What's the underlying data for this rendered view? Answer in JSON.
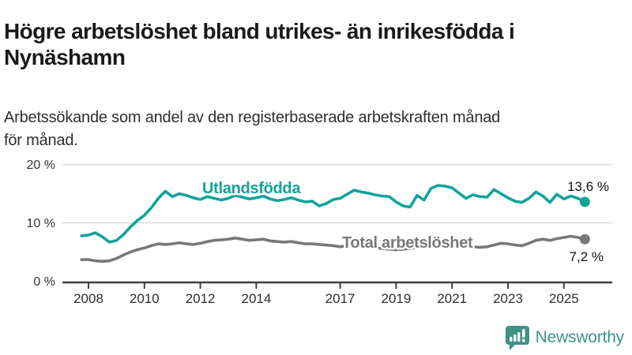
{
  "header": {
    "title": "Högre arbetslöshet bland utrikes- än inrikesfödda i Nynäshamn",
    "title_lines": [
      "Högre arbetslöshet bland utrikes- än inrikesfödda i",
      "Nynäshamn"
    ],
    "subtitle": "Arbetssökande som andel av den registerbaserade arbetskraften månad för månad.",
    "subtitle_lines": [
      "Arbetssökande som andel av den registerbaserade arbetskraften månad",
      "för månad."
    ]
  },
  "chart_data": {
    "type": "line",
    "title": "Högre arbetslöshet bland utrikes- än inrikesfödda i Nynäshamn",
    "xlabel": "",
    "ylabel": "",
    "x_unit": "year (monthly share of labour force)",
    "x_start": 2007.75,
    "x_step": 0.25,
    "xlim": [
      2007.7,
      2026.6
    ],
    "ylim": [
      0,
      21.5
    ],
    "grid": "horizontal",
    "legend": "inline-labels",
    "x_tick_values": [
      2008,
      2010,
      2012,
      2014,
      2017,
      2019,
      2021,
      2023,
      2025
    ],
    "x_tick_labels": [
      "2008",
      "2010",
      "2012",
      "2014",
      "2017",
      "2019",
      "2021",
      "2023",
      "2025"
    ],
    "y_tick_values": [
      0,
      10,
      20
    ],
    "y_tick_labels": [
      "0 %",
      "10 %",
      "20 %"
    ],
    "series": [
      {
        "name": "Utlandsfödda",
        "color": "#13a39a",
        "end_label": "13,6 %",
        "end_value": 13.6,
        "values": [
          7.8,
          7.9,
          8.3,
          7.6,
          6.7,
          7.0,
          8.0,
          9.3,
          10.4,
          11.3,
          12.6,
          14.2,
          15.4,
          14.5,
          15.0,
          14.7,
          14.3,
          14.0,
          14.5,
          14.2,
          13.9,
          14.2,
          14.7,
          14.4,
          14.1,
          14.3,
          14.6,
          14.1,
          13.8,
          14.0,
          14.3,
          13.9,
          13.6,
          13.7,
          12.9,
          13.3,
          14.0,
          14.2,
          14.9,
          15.6,
          15.3,
          15.1,
          14.8,
          14.6,
          14.5,
          13.6,
          12.9,
          12.7,
          14.7,
          13.9,
          15.9,
          16.4,
          16.3,
          16.0,
          15.1,
          14.2,
          14.8,
          14.5,
          14.4,
          15.7,
          15.0,
          14.3,
          13.7,
          13.5,
          14.2,
          15.3,
          14.6,
          13.5,
          14.9,
          14.1,
          14.6,
          14.2,
          13.6
        ]
      },
      {
        "name": "Total arbetslöshet",
        "color": "#787878",
        "end_label": "7,2 %",
        "end_value": 7.2,
        "values": [
          3.7,
          3.7,
          3.5,
          3.4,
          3.5,
          3.9,
          4.5,
          5.0,
          5.4,
          5.7,
          6.1,
          6.4,
          6.3,
          6.4,
          6.6,
          6.4,
          6.3,
          6.5,
          6.8,
          7.0,
          7.1,
          7.2,
          7.4,
          7.2,
          7.0,
          7.1,
          7.2,
          6.9,
          6.8,
          6.7,
          6.8,
          6.6,
          6.4,
          6.4,
          6.3,
          6.2,
          6.1,
          5.9,
          6.1,
          6.2,
          6.0,
          5.9,
          5.8,
          5.6,
          5.5,
          5.4,
          5.5,
          5.6,
          5.8,
          6.0,
          6.6,
          6.8,
          6.6,
          6.4,
          6.2,
          6.0,
          5.9,
          5.8,
          5.9,
          6.2,
          6.5,
          6.4,
          6.2,
          6.1,
          6.5,
          7.0,
          7.2,
          7.0,
          7.3,
          7.5,
          7.7,
          7.5,
          7.2
        ]
      }
    ],
    "colors": {
      "grid": "#d9d9d9",
      "axis": "#3f3f3f",
      "tick_text": "#2d2d2d"
    }
  },
  "footer": {
    "brand": "Newsworthy",
    "brand_color": "#3e9286",
    "logo_icon": "bar-chart-speech-bubble-icon"
  }
}
